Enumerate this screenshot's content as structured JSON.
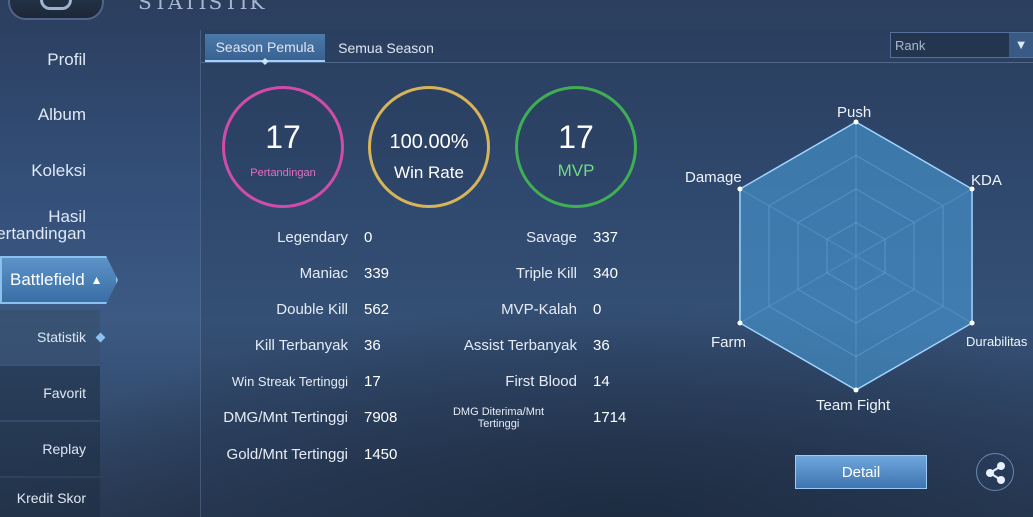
{
  "header": {
    "title": "STATISTIK"
  },
  "sidebar": {
    "items": [
      {
        "label": "Profil"
      },
      {
        "label": "Album"
      },
      {
        "label": "Koleksi"
      },
      {
        "label": "Hasil\nPertandingan"
      }
    ],
    "active_group": "Battlefield",
    "sub_items": [
      {
        "label": "Statistik"
      },
      {
        "label": "Favorit"
      },
      {
        "label": "Replay"
      },
      {
        "label": "Kredit Skor"
      }
    ]
  },
  "tabs": [
    {
      "label": "Season Pemula"
    },
    {
      "label": "Semua Season"
    }
  ],
  "rank_select": {
    "value": "Rank"
  },
  "summary": {
    "matches": {
      "value": "17",
      "label": "Pertandingan"
    },
    "win_rate": {
      "value": "100.00%",
      "label": "Win Rate"
    },
    "mvp": {
      "value": "17",
      "label": "MVP"
    }
  },
  "stats_left": [
    {
      "label": "Legendary",
      "value": "0"
    },
    {
      "label": "Maniac",
      "value": "339"
    },
    {
      "label": "Double Kill",
      "value": "562"
    },
    {
      "label": "Kill Terbanyak",
      "value": "36"
    },
    {
      "label": "Win Streak Tertinggi",
      "value": "17"
    },
    {
      "label": "DMG/Mnt Tertinggi",
      "value": "7908"
    },
    {
      "label": "Gold/Mnt Tertinggi",
      "value": "1450"
    }
  ],
  "stats_right": [
    {
      "label": "Savage",
      "value": "337"
    },
    {
      "label": "Triple Kill",
      "value": "340"
    },
    {
      "label": "MVP-Kalah",
      "value": "0"
    },
    {
      "label": "Assist Terbanyak",
      "value": "36"
    },
    {
      "label": "First Blood",
      "value": "14"
    },
    {
      "label": "DMG Diterima/Mnt\nTertinggi",
      "value": "1714"
    }
  ],
  "radar": {
    "axes": [
      "Push",
      "KDA",
      "Durabilitas",
      "Team Fight",
      "Farm",
      "Damage"
    ],
    "values": [
      1.0,
      1.0,
      1.0,
      1.0,
      1.0,
      1.0
    ]
  },
  "buttons": {
    "detail": "Detail"
  },
  "colors": {
    "matches_ring": "#d04ca8",
    "winrate_ring": "#d6b45a",
    "mvp_ring": "#3fae54",
    "mvp_label": "#6fdc84",
    "radar_fill": "#4aa3e0"
  },
  "icons": {
    "share": "share-icon",
    "back": "back-icon"
  }
}
